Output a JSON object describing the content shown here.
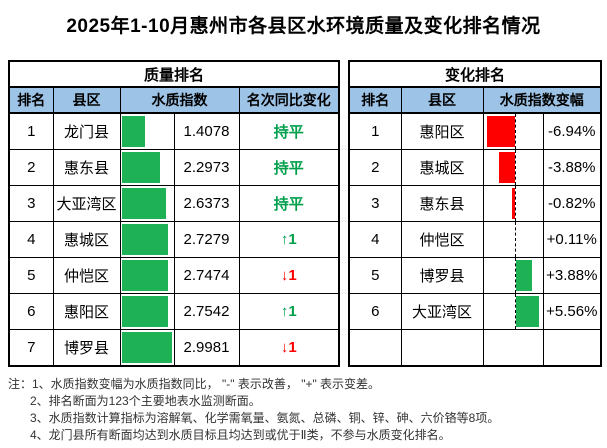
{
  "title": "2025年1-10月惠州市各县区水环境质量及变化排名情况",
  "quality_table": {
    "title": "质量排名",
    "columns": {
      "rank": "排名",
      "district": "县区",
      "index": "水质指数",
      "rank_change": "名次同比变化"
    },
    "rows": [
      {
        "rank": "1",
        "district": "龙门县",
        "index": 1.4078,
        "index_label": "1.4078",
        "change_label": "持平",
        "change_dir": "flat"
      },
      {
        "rank": "2",
        "district": "惠东县",
        "index": 2.2973,
        "index_label": "2.2973",
        "change_label": "持平",
        "change_dir": "flat"
      },
      {
        "rank": "3",
        "district": "大亚湾区",
        "index": 2.6373,
        "index_label": "2.6373",
        "change_label": "持平",
        "change_dir": "flat"
      },
      {
        "rank": "4",
        "district": "惠城区",
        "index": 2.7279,
        "index_label": "2.7279",
        "change_label": "↑1",
        "change_dir": "up"
      },
      {
        "rank": "5",
        "district": "仲恺区",
        "index": 2.7474,
        "index_label": "2.7474",
        "change_label": "↓1",
        "change_dir": "down"
      },
      {
        "rank": "6",
        "district": "惠阳区",
        "index": 2.7542,
        "index_label": "2.7542",
        "change_label": "↑1",
        "change_dir": "up"
      },
      {
        "rank": "7",
        "district": "博罗县",
        "index": 2.9981,
        "index_label": "2.9981",
        "change_label": "↓1",
        "change_dir": "down"
      }
    ]
  },
  "change_table": {
    "title": "变化排名",
    "columns": {
      "rank": "排名",
      "district": "县区",
      "index_change": "水质指数变幅"
    },
    "rows": [
      {
        "rank": "1",
        "district": "惠阳区",
        "pct": -6.94,
        "pct_label": "-6.94%"
      },
      {
        "rank": "2",
        "district": "惠城区",
        "pct": -3.88,
        "pct_label": "-3.88%"
      },
      {
        "rank": "3",
        "district": "惠东县",
        "pct": -0.82,
        "pct_label": "-0.82%"
      },
      {
        "rank": "4",
        "district": "仲恺区",
        "pct": 0.11,
        "pct_label": "+0.11%"
      },
      {
        "rank": "5",
        "district": "博罗县",
        "pct": 3.88,
        "pct_label": "+3.88%"
      },
      {
        "rank": "6",
        "district": "大亚湾区",
        "pct": 5.56,
        "pct_label": "+5.56%"
      }
    ]
  },
  "notes": [
    "注：1、水质指数变幅为水质指数同比， \"-\" 表示改善， \"+\" 表示变差。",
    "2、排名断面为123个主要地表水监测断面。",
    "3、水质指数计算指标为溶解氧、化学需氧量、氨氮、总磷、铜、锌、砷、六价铬等8项。",
    "4、龙门县所有断面均达到水质目标且均达到或优于Ⅱ类，不参与水质变化排名。"
  ],
  "colors": {
    "header_bg": "#9DC3E6",
    "bar_green": "#1EB155",
    "bar_red": "#FF0000",
    "text_green": "#00A04B",
    "text_red": "#FF0000"
  }
}
